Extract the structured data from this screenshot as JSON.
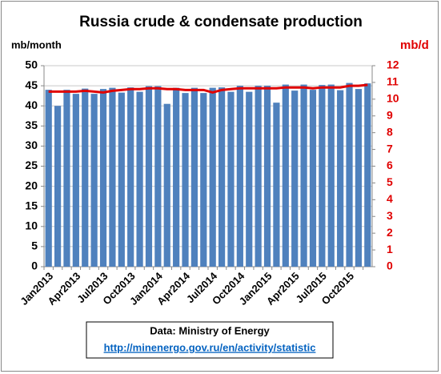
{
  "chart_data": {
    "type": "bar",
    "title": "Russia crude & condensate production",
    "y_label": "mb/month",
    "y2_label": "mb/d",
    "categories": [
      "Jan2013",
      null,
      null,
      "Apr2013",
      null,
      null,
      "Jul2013",
      null,
      null,
      "Oct2013",
      null,
      null,
      "Jan2014",
      null,
      null,
      "Apr2014",
      null,
      null,
      "Jul2014",
      null,
      null,
      "Oct2014",
      null,
      null,
      "Jan2015",
      null,
      null,
      "Apr2015",
      null,
      null,
      "Jul2015",
      null,
      null,
      "Oct2015",
      null,
      null
    ],
    "series": [
      {
        "type": "bar",
        "color": "#4f81bd",
        "axis": "y",
        "values": [
          44,
          40,
          44,
          43,
          44.3,
          43,
          44.2,
          44.5,
          43.3,
          44.6,
          43.5,
          44.9,
          44.9,
          40.5,
          44.5,
          43.2,
          44.5,
          43.2,
          44.5,
          44.6,
          43.5,
          45,
          43.5,
          45,
          45,
          40.8,
          45.3,
          43.8,
          45.3,
          44,
          45.2,
          45.3,
          43.9,
          45.7,
          44.2,
          45.6
        ]
      },
      {
        "type": "line",
        "color": "#e00000",
        "axis": "y2",
        "values": [
          10.45,
          10.45,
          10.45,
          10.45,
          10.5,
          10.45,
          10.4,
          10.5,
          10.55,
          10.6,
          10.6,
          10.65,
          10.65,
          10.6,
          10.6,
          10.55,
          10.55,
          10.55,
          10.4,
          10.55,
          10.6,
          10.65,
          10.65,
          10.65,
          10.65,
          10.65,
          10.7,
          10.7,
          10.7,
          10.65,
          10.7,
          10.7,
          10.7,
          10.8,
          10.8,
          10.85
        ]
      }
    ],
    "ylim": [
      0,
      50
    ],
    "yticks": [
      0,
      5,
      10,
      15,
      20,
      25,
      30,
      35,
      40,
      45,
      50
    ],
    "y2lim": [
      0,
      12
    ],
    "y2ticks": [
      0,
      1,
      2,
      3,
      4,
      5,
      6,
      7,
      8,
      9,
      10,
      11,
      12
    ],
    "y2_color": "#e00000",
    "grid": true,
    "source": {
      "label": "Data: Ministry of Energy",
      "link": "http://minenergo.gov.ru/en/activity/statistic"
    }
  }
}
